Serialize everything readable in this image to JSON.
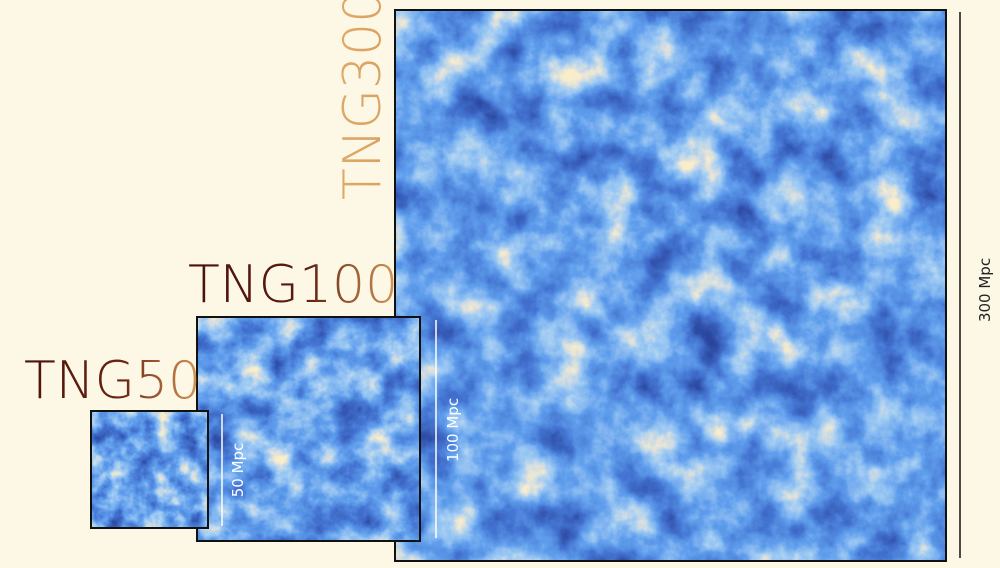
{
  "panels": [
    {
      "title": "TNG300",
      "scale": "300 Mpc"
    },
    {
      "title": "TNG100",
      "scale": "100 Mpc"
    },
    {
      "title": "TNG50",
      "scale": "50 Mpc"
    }
  ]
}
